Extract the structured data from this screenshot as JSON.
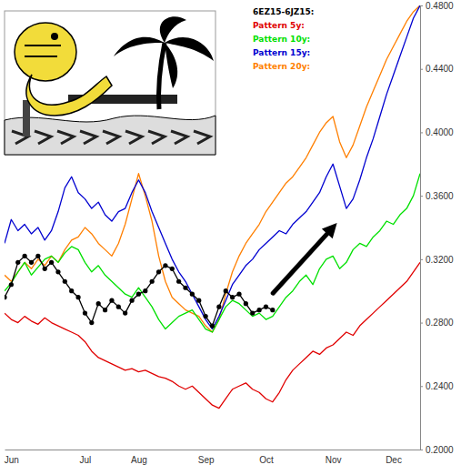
{
  "chart_data": {
    "type": "line",
    "categories": [
      null,
      "Jun",
      null,
      null,
      null,
      null,
      null,
      null,
      null,
      null,
      null,
      null,
      "Jul",
      null,
      null,
      null,
      null,
      null,
      null,
      null,
      "Aug",
      null,
      null,
      null,
      null,
      null,
      null,
      null,
      null,
      null,
      "Sep",
      null,
      null,
      null,
      null,
      null,
      null,
      null,
      null,
      "Oct",
      null,
      null,
      null,
      null,
      null,
      null,
      null,
      null,
      null,
      "Nov",
      null,
      null,
      null,
      null,
      null,
      null,
      null,
      null,
      "Dec",
      null,
      null,
      null,
      null
    ],
    "ylim": [
      0.2,
      0.48
    ],
    "yticks": [
      {
        "value": 0.2,
        "label": "0.2000"
      },
      {
        "value": 0.24,
        "label": "0.2400"
      },
      {
        "value": 0.28,
        "label": "0.2800"
      },
      {
        "value": 0.32,
        "label": "0.3200"
      },
      {
        "value": 0.36,
        "label": "0.3600"
      },
      {
        "value": 0.4,
        "label": "0.4000"
      },
      {
        "value": 0.44,
        "label": "0.4400"
      },
      {
        "value": 0.48,
        "label": "0.4800"
      }
    ],
    "grid": false,
    "legend": "top",
    "series": [
      {
        "name": "6EZ15-6JZ15:",
        "color": "#000000",
        "marker": "circle",
        "line_style": "solid",
        "values": [
          0.296,
          0.304,
          0.318,
          0.322,
          0.318,
          0.322,
          0.314,
          0.318,
          0.312,
          0.306,
          0.3,
          0.296,
          0.286,
          0.28,
          0.292,
          0.288,
          0.294,
          0.29,
          0.286,
          0.294,
          0.298,
          0.3,
          0.306,
          0.312,
          0.316,
          0.314,
          0.306,
          0.302,
          0.298,
          0.294,
          0.284,
          0.278,
          0.29,
          0.3,
          0.296,
          0.298,
          0.292,
          0.286,
          0.288,
          0.29,
          0.288,
          null,
          null,
          null,
          null,
          null,
          null,
          null,
          null,
          null,
          null,
          null,
          null,
          null,
          null,
          null,
          null,
          null,
          null,
          null,
          null,
          null,
          null
        ]
      },
      {
        "name": "Pattern 5y:",
        "color": "#e00000",
        "line_style": "solid",
        "values": [
          0.286,
          0.282,
          0.28,
          0.284,
          0.281,
          0.279,
          0.283,
          0.28,
          0.278,
          0.276,
          0.274,
          0.272,
          0.268,
          0.262,
          0.258,
          0.256,
          0.254,
          0.252,
          0.25,
          0.251,
          0.249,
          0.25,
          0.248,
          0.246,
          0.245,
          0.243,
          0.24,
          0.238,
          0.24,
          0.236,
          0.232,
          0.228,
          0.226,
          0.232,
          0.238,
          0.24,
          0.242,
          0.238,
          0.236,
          0.232,
          0.23,
          0.236,
          0.244,
          0.25,
          0.254,
          0.258,
          0.262,
          0.26,
          0.264,
          0.266,
          0.27,
          0.274,
          0.272,
          0.278,
          0.282,
          0.286,
          0.29,
          0.294,
          0.298,
          0.302,
          0.306,
          0.312,
          0.318
        ]
      },
      {
        "name": "Pattern 10y:",
        "color": "#00e000",
        "line_style": "solid",
        "values": [
          0.3,
          0.305,
          0.312,
          0.318,
          0.31,
          0.315,
          0.32,
          0.322,
          0.318,
          0.324,
          0.328,
          0.326,
          0.318,
          0.312,
          0.316,
          0.31,
          0.306,
          0.302,
          0.298,
          0.296,
          0.302,
          0.296,
          0.29,
          0.282,
          0.276,
          0.28,
          0.284,
          0.286,
          0.288,
          0.282,
          0.276,
          0.274,
          0.282,
          0.29,
          0.294,
          0.292,
          0.288,
          0.284,
          0.286,
          0.282,
          0.284,
          0.29,
          0.296,
          0.3,
          0.306,
          0.31,
          0.304,
          0.314,
          0.32,
          0.322,
          0.314,
          0.318,
          0.326,
          0.33,
          0.328,
          0.334,
          0.338,
          0.344,
          0.342,
          0.348,
          0.352,
          0.36,
          0.374
        ]
      },
      {
        "name": "Pattern 15y:",
        "color": "#0000d0",
        "line_style": "solid",
        "values": [
          0.33,
          0.345,
          0.338,
          0.342,
          0.336,
          0.34,
          0.332,
          0.338,
          0.35,
          0.365,
          0.372,
          0.362,
          0.358,
          0.352,
          0.356,
          0.348,
          0.344,
          0.35,
          0.352,
          0.362,
          0.37,
          0.362,
          0.35,
          0.34,
          0.33,
          0.32,
          0.312,
          0.306,
          0.298,
          0.29,
          0.282,
          0.276,
          0.284,
          0.294,
          0.304,
          0.31,
          0.316,
          0.32,
          0.326,
          0.33,
          0.334,
          0.338,
          0.336,
          0.342,
          0.346,
          0.35,
          0.356,
          0.362,
          0.372,
          0.38,
          0.366,
          0.352,
          0.358,
          0.37,
          0.384,
          0.396,
          0.41,
          0.424,
          0.436,
          0.448,
          0.46,
          0.472,
          0.48
        ]
      },
      {
        "name": "Pattern 20y:",
        "color": "#ff7f00",
        "line_style": "solid",
        "values": [
          0.31,
          0.306,
          0.312,
          0.318,
          0.314,
          0.32,
          0.316,
          0.322,
          0.318,
          0.326,
          0.332,
          0.334,
          0.34,
          0.336,
          0.33,
          0.326,
          0.322,
          0.33,
          0.342,
          0.358,
          0.374,
          0.36,
          0.344,
          0.322,
          0.306,
          0.296,
          0.292,
          0.288,
          0.286,
          0.284,
          0.278,
          0.274,
          0.282,
          0.298,
          0.312,
          0.322,
          0.33,
          0.336,
          0.342,
          0.35,
          0.356,
          0.362,
          0.368,
          0.372,
          0.378,
          0.384,
          0.392,
          0.4,
          0.406,
          0.41,
          0.394,
          0.384,
          0.392,
          0.404,
          0.416,
          0.426,
          0.436,
          0.446,
          0.454,
          0.462,
          0.47,
          0.476,
          0.48
        ]
      }
    ]
  }
}
